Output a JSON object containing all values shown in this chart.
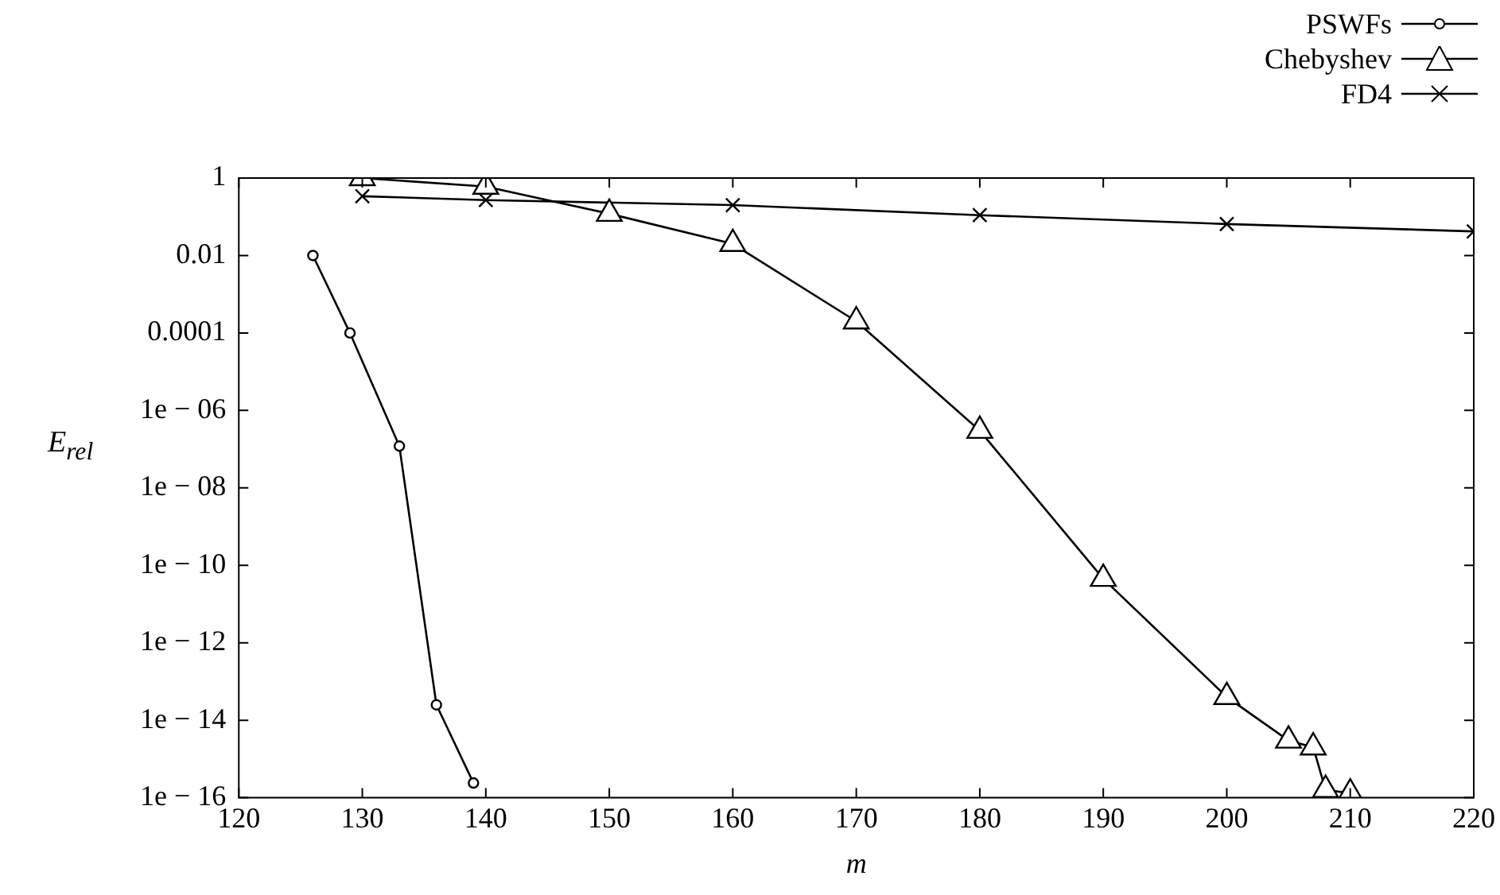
{
  "chart_data": {
    "type": "line",
    "xlabel": "m",
    "ylabel": "E$_{rel}$",
    "log": "y",
    "grid": false,
    "legend": "top right",
    "line_style": "solid",
    "xlim": [
      120,
      220
    ],
    "xticks": [
      120,
      130,
      140,
      150,
      160,
      170,
      180,
      190,
      200,
      210,
      220
    ],
    "ylim": [
      1e-16,
      1
    ],
    "yticks": [
      1,
      0.01,
      0.0001,
      {
        "value": 1e-06,
        "label": "1e − 06"
      },
      {
        "value": 1e-08,
        "label": "1e − 08"
      },
      {
        "value": 1e-10,
        "label": "1e − 10"
      },
      {
        "value": 1e-12,
        "label": "1e − 12"
      },
      {
        "value": 1e-14,
        "label": "1e − 14"
      },
      {
        "value": 1e-16,
        "label": "1e − 16"
      }
    ],
    "series": [
      {
        "name": "PSWFs",
        "color": "#000000",
        "marker": "circle",
        "x": [
          126,
          129,
          133,
          136,
          139
        ],
        "values": [
          0.01,
          0.0001,
          1.2e-07,
          2.5e-14,
          2.4e-16
        ]
      },
      {
        "name": "Chebyshev",
        "color": "#000000",
        "marker": "triangle",
        "x": [
          130,
          140,
          150,
          160,
          170,
          180,
          190,
          200,
          205,
          207,
          208,
          210
        ],
        "values": [
          1,
          0.6,
          0.12,
          0.02,
          0.0002,
          3e-07,
          4.5e-11,
          4e-14,
          3e-15,
          2e-15,
          1.6e-16,
          1.3e-16
        ]
      },
      {
        "name": "FD4",
        "color": "#000000",
        "marker": "cross",
        "x": [
          130,
          140,
          160,
          180,
          200,
          220
        ],
        "values": [
          0.34,
          0.27,
          0.2,
          0.11,
          0.065,
          0.042
        ]
      }
    ]
  }
}
